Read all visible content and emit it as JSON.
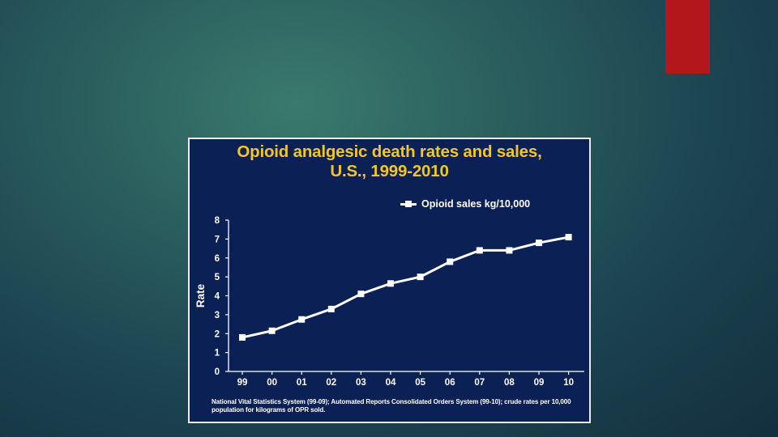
{
  "colors": {
    "accent": "#b3171b",
    "panel": "#0b2156",
    "title": "#f3c624",
    "text": "#ffffff",
    "series": "#ffffff"
  },
  "chart_data": {
    "type": "line",
    "title": "Opioid analgesic death rates and sales,",
    "subtitle": "U.S., 1999-2010",
    "xlabel": "",
    "ylabel": "Rate",
    "categories": [
      "99",
      "00",
      "01",
      "02",
      "03",
      "04",
      "05",
      "06",
      "07",
      "08",
      "09",
      "10"
    ],
    "yticks": [
      "0",
      "1",
      "2",
      "3",
      "4",
      "5",
      "6",
      "7",
      "8"
    ],
    "ylim": [
      0,
      8
    ],
    "grid": false,
    "legend_position": "top-right",
    "series": [
      {
        "name": "Opioid sales kg/10,000",
        "values": [
          1.8,
          2.15,
          2.75,
          3.3,
          4.1,
          4.65,
          5.0,
          5.8,
          6.4,
          6.4,
          6.8,
          7.1
        ]
      }
    ],
    "footnote": "National Vital Statistics System (99-09); Automated Reports Consolidated Orders System (99-10); crude rates per 10,000 population for  kilograms of OPR sold."
  }
}
